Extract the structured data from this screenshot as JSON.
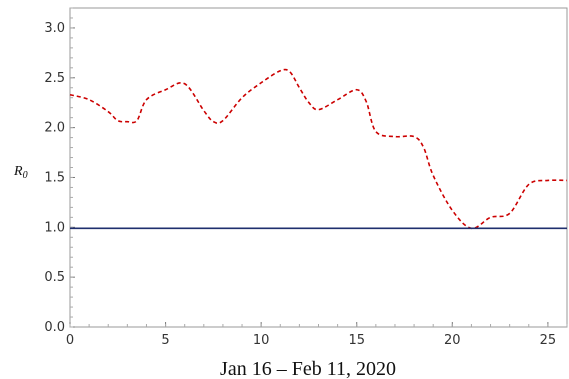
{
  "chart_data": {
    "type": "line",
    "xlabel": "Jan 16 – Feb 11, 2020",
    "ylabel": "R",
    "ylabel_subscript": "0",
    "xlim": [
      0,
      26
    ],
    "ylim": [
      0,
      3.2
    ],
    "x_ticks": [
      0,
      5,
      10,
      15,
      20,
      25
    ],
    "y_ticks": [
      0.0,
      0.5,
      1.0,
      1.5,
      2.0,
      2.5,
      3.0
    ],
    "y_tick_labels": [
      "0.0",
      "0.5",
      "1.0",
      "1.5",
      "2.0",
      "2.5",
      "3.0"
    ],
    "grid": false,
    "series": [
      {
        "style": "dashed",
        "color": "#cc0000",
        "x": [
          0,
          1,
          2,
          2.5,
          3,
          3.5,
          4,
          5,
          6,
          7,
          7.5,
          8,
          9,
          10,
          11,
          11.5,
          12,
          12.5,
          13,
          14,
          15,
          15.5,
          16,
          17,
          18,
          18.5,
          19,
          20,
          21,
          22,
          23,
          24,
          25,
          26
        ],
        "values": [
          2.33,
          2.28,
          2.16,
          2.07,
          2.06,
          2.07,
          2.28,
          2.38,
          2.44,
          2.17,
          2.06,
          2.07,
          2.3,
          2.45,
          2.57,
          2.56,
          2.4,
          2.25,
          2.18,
          2.28,
          2.38,
          2.26,
          1.96,
          1.91,
          1.91,
          1.8,
          1.52,
          1.17,
          0.99,
          1.1,
          1.14,
          1.43,
          1.47,
          1.47
        ]
      },
      {
        "style": "solid",
        "color": "#1f2f6e",
        "x": [
          0,
          26
        ],
        "values": [
          0.99,
          0.99
        ]
      }
    ]
  }
}
